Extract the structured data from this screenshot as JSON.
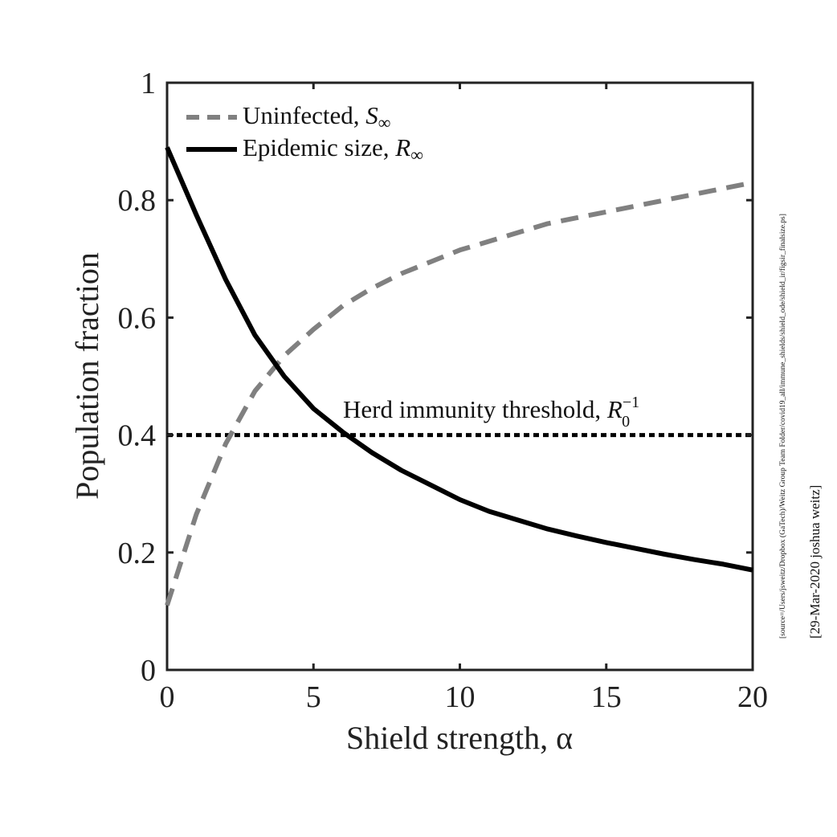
{
  "chart_data": {
    "type": "line",
    "xlabel": "Shield strength, α",
    "ylabel": "Population fraction",
    "xlim": [
      0,
      20
    ],
    "ylim": [
      0,
      1
    ],
    "xticks": [
      0,
      5,
      10,
      15,
      20
    ],
    "yticks": [
      0,
      0.2,
      0.4,
      0.6,
      0.8,
      1
    ],
    "xtick_labels": [
      "0",
      "5",
      "10",
      "15",
      "20"
    ],
    "ytick_labels": [
      "0",
      "0.2",
      "0.4",
      "0.6",
      "0.8",
      "1"
    ],
    "grid": false,
    "legend_position": "top-left",
    "x": [
      0,
      1,
      2,
      3,
      4,
      5,
      6,
      7,
      8,
      9,
      10,
      11,
      12,
      13,
      14,
      15,
      16,
      17,
      18,
      19,
      20
    ],
    "series": [
      {
        "name": "Uninfected, S∞",
        "legend_main": "Uninfected, ",
        "legend_sym": "S",
        "legend_sub": "∞",
        "color": "#808080",
        "style": "dashed",
        "values": [
          0.11,
          0.265,
          0.385,
          0.475,
          0.535,
          0.58,
          0.62,
          0.65,
          0.675,
          0.695,
          0.715,
          0.73,
          0.745,
          0.76,
          0.77,
          0.78,
          0.79,
          0.8,
          0.81,
          0.82,
          0.83
        ]
      },
      {
        "name": "Epidemic size, R∞",
        "legend_main": "Epidemic size, ",
        "legend_sym": "R",
        "legend_sub": "∞",
        "color": "#000000",
        "style": "solid",
        "values": [
          0.89,
          0.775,
          0.665,
          0.57,
          0.5,
          0.445,
          0.405,
          0.37,
          0.34,
          0.315,
          0.29,
          0.27,
          0.255,
          0.24,
          0.228,
          0.217,
          0.207,
          0.197,
          0.188,
          0.18,
          0.17
        ]
      }
    ],
    "reference_line": {
      "y": 0.4,
      "style": "dotted",
      "color": "#000000",
      "label_main": "Herd immunity threshold, ",
      "label_sym": "R",
      "label_sub": "0",
      "label_sup": "−1"
    }
  },
  "side_text": {
    "source": "[source=/Users/jsweitz/Dropbox (GaTech)/Weitz Group Team Folder/covid19_all/immune_shields/shield_ode/shield_ir/figsir_finalsize.ps]",
    "stamp": "[29-Mar-2020 joshua weitz]"
  }
}
